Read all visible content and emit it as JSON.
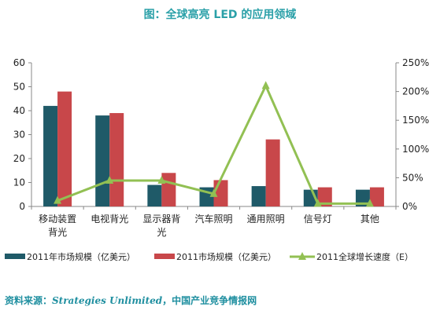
{
  "title": "图：全球高亮 LED 的应用领域",
  "source": {
    "prefix": "资料来源：",
    "italic": "Strategies Unlimited",
    "suffix": "，中国产业竞争情报网"
  },
  "colors": {
    "series_2011": "#1f5a68",
    "series_2011_b": "#c8474a",
    "growth": "#92c053",
    "title": "#2aa0a8"
  },
  "chart_data": {
    "type": "bar",
    "categories": [
      "移动装置背光",
      "电视背光",
      "显示器背光",
      "汽车照明",
      "通用照明",
      "信号灯",
      "其他"
    ],
    "category_lines": [
      [
        "移动装置",
        "背光"
      ],
      [
        "电视背光"
      ],
      [
        "显示器背",
        "光"
      ],
      [
        "汽车照明"
      ],
      [
        "通用照明"
      ],
      [
        "信号灯"
      ],
      [
        "其他"
      ]
    ],
    "series": [
      {
        "name": "2011年市场规模（亿美元）",
        "values": [
          42,
          38,
          9,
          8,
          8.5,
          7,
          7
        ],
        "axis": "left"
      },
      {
        "name": "2011市场规模（亿美元）",
        "values": [
          48,
          39,
          14,
          11,
          28,
          8,
          8
        ],
        "axis": "left"
      },
      {
        "name": "2011全球增长速度（E）",
        "values": [
          10,
          45,
          45,
          22,
          210,
          5,
          5
        ],
        "axis": "right",
        "type": "line",
        "unit": "%"
      }
    ],
    "ylim": [
      0,
      60
    ],
    "yticks": [
      0,
      10,
      20,
      30,
      40,
      50,
      60
    ],
    "y2lim": [
      0,
      250
    ],
    "y2ticks": [
      "0%",
      "50%",
      "100%",
      "150%",
      "200%",
      "250%"
    ],
    "grid": false,
    "legend": "bottom"
  }
}
